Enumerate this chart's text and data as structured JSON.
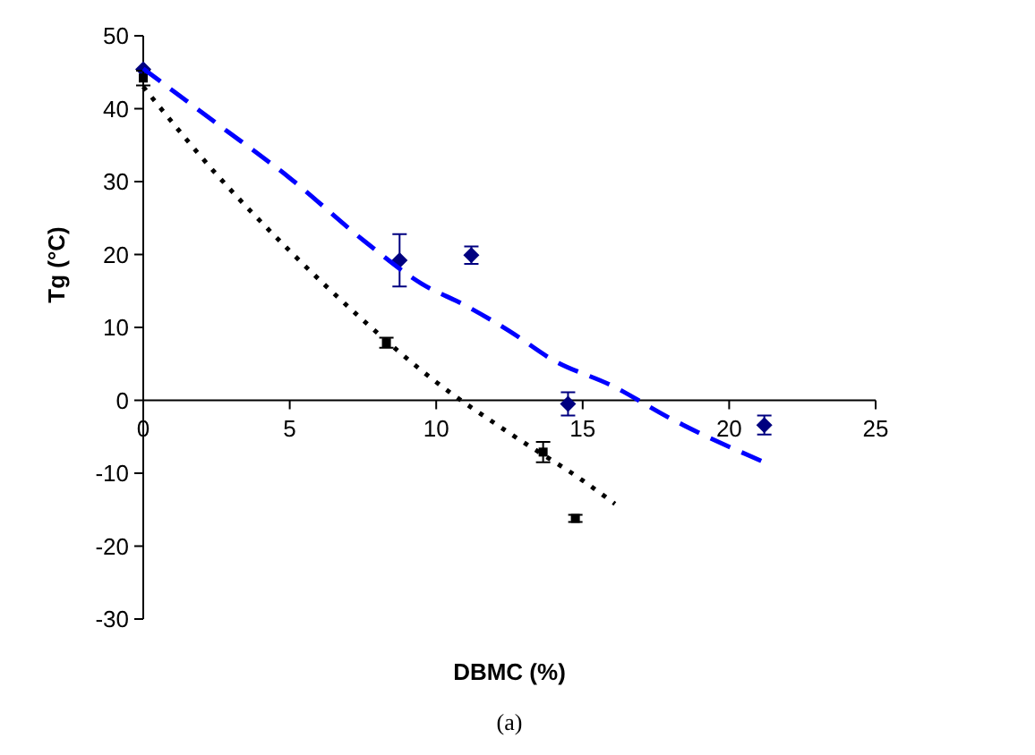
{
  "chart_data": {
    "type": "scatter",
    "xlabel": "DBMC (%)",
    "ylabel": "Tg (°C)",
    "annotations": [
      "(a)"
    ],
    "xlim": [
      0,
      25
    ],
    "xticks": [
      0,
      5,
      10,
      15,
      20,
      25
    ],
    "ylim": [
      -30,
      50
    ],
    "yticks": [
      -30,
      -20,
      -10,
      0,
      10,
      20,
      30,
      40,
      50
    ],
    "grid": false,
    "series": [
      {
        "color": "#000080",
        "marker": "diamond",
        "x": [
          0,
          8.75,
          11.2,
          14.5,
          21.2
        ],
        "values": [
          45.4,
          19.2,
          19.9,
          -0.5,
          -3.4
        ],
        "errors": [
          null,
          3.6,
          1.2,
          1.6,
          1.3
        ]
      },
      {
        "color": "#000000",
        "marker": "square",
        "x": [
          0,
          8.3,
          13.65,
          14.75
        ],
        "values": [
          44.2,
          7.9,
          -7.1,
          -16.2
        ],
        "errors": [
          1,
          0.7,
          1.4,
          0.5
        ]
      },
      {
        "type": "line",
        "color": "#0000ff",
        "line_style": "dashed",
        "marker": "none",
        "x": [
          0,
          2.5,
          5,
          7.5,
          9.5,
          11,
          12.5,
          14,
          16,
          18,
          21.2
        ],
        "values": [
          45.5,
          38,
          30.5,
          22,
          16,
          13,
          9.5,
          5.5,
          2,
          -2.5,
          -8.5
        ]
      },
      {
        "type": "line",
        "color": "#000000",
        "line_style": "dotted",
        "marker": "none",
        "x": [
          0,
          2.5,
          5,
          7.5,
          10,
          12.5,
          15,
          16.1
        ],
        "values": [
          43,
          31,
          20.5,
          11,
          2.5,
          -4.5,
          -11,
          -14.2
        ]
      }
    ]
  }
}
